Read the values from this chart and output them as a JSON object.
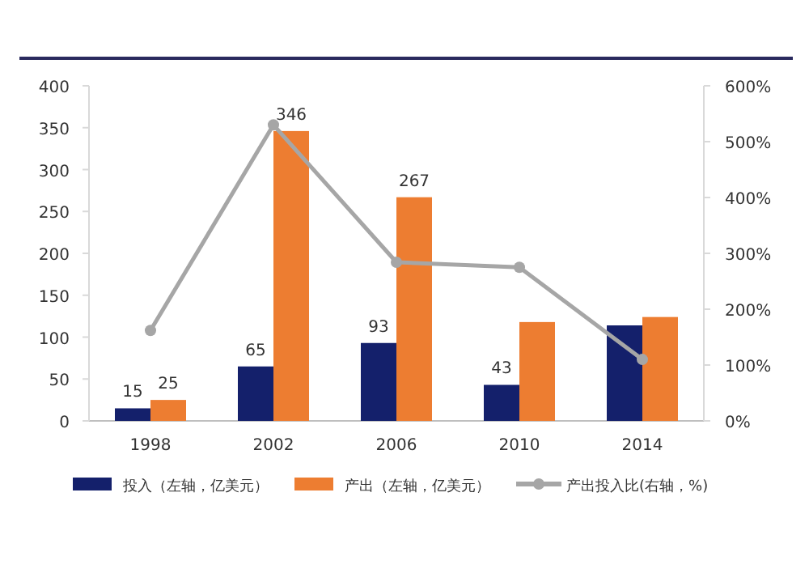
{
  "chart_data": {
    "type": "bar",
    "categories": [
      "1998",
      "2002",
      "2006",
      "2010",
      "2014"
    ],
    "series": [
      {
        "name": "投入（左轴，亿美元）",
        "color": "#14206b",
        "values": [
          15,
          65,
          93,
          43,
          114
        ],
        "value_labels": [
          "15",
          "65",
          "93",
          "43",
          null
        ]
      },
      {
        "name": "产出（左轴，亿美元）",
        "color": "#ed7d31",
        "values": [
          25,
          346,
          267,
          118,
          124
        ],
        "value_labels": [
          "25",
          "346",
          "267",
          null,
          null
        ]
      },
      {
        "name": "产出投入比(右轴，%)",
        "type": "line",
        "axis": "y2",
        "color": "#a6a6a6",
        "marker": "circle",
        "values": [
          162,
          530,
          284,
          275,
          110
        ]
      }
    ],
    "ylim": [
      0,
      400
    ],
    "yticks": [
      0,
      50,
      100,
      150,
      200,
      250,
      300,
      350,
      400
    ],
    "y2lim": [
      0,
      600
    ],
    "y2ticks": [
      {
        "value": 0,
        "label": "0%"
      },
      {
        "value": 100,
        "label": "100%"
      },
      {
        "value": 200,
        "label": "200%"
      },
      {
        "value": 300,
        "label": "300%"
      },
      {
        "value": 400,
        "label": "400%"
      },
      {
        "value": 500,
        "label": "500%"
      },
      {
        "value": 600,
        "label": "600%"
      }
    ],
    "grid": false,
    "legend": "bottom"
  }
}
